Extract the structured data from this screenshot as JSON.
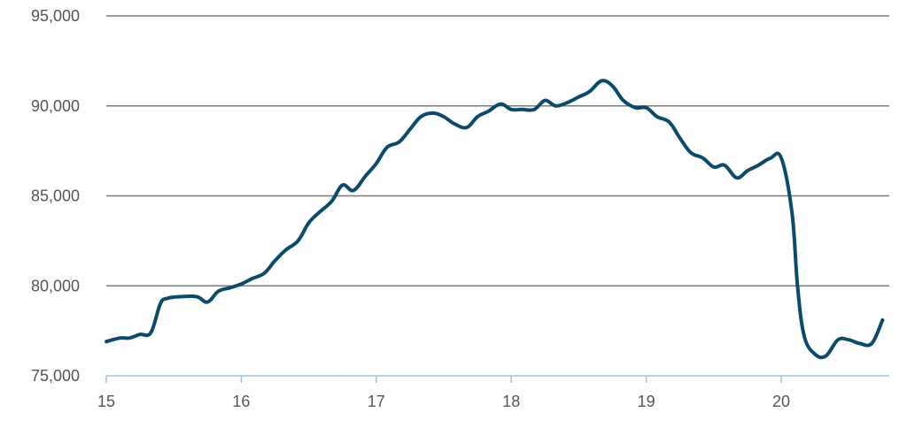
{
  "chart_data": {
    "type": "line",
    "title": "",
    "xlabel": "",
    "ylabel": "",
    "xlim": [
      15,
      20.8
    ],
    "ylim": [
      75000,
      95000
    ],
    "grid": true,
    "legend": "none",
    "x_ticks": [
      15,
      16,
      17,
      18,
      19,
      20
    ],
    "x_tick_labels": [
      "15",
      "16",
      "17",
      "18",
      "19",
      "20"
    ],
    "y_ticks": [
      75000,
      80000,
      85000,
      90000,
      95000
    ],
    "y_tick_labels": [
      "75,000",
      "80,000",
      "85,000",
      "90,000",
      "95,000"
    ],
    "colors": {
      "line": "#0b4a6b",
      "grid": "#7a7a7a",
      "baseline": "#9fc3df",
      "text": "#555555"
    },
    "series": [
      {
        "x": [
          15.0,
          15.1,
          15.17,
          15.25,
          15.33,
          15.4,
          15.45,
          15.55,
          15.67,
          15.75,
          15.83,
          15.92,
          16.0,
          16.08,
          16.17,
          16.25,
          16.33,
          16.42,
          16.5,
          16.58,
          16.67,
          16.75,
          16.83,
          16.92,
          17.0,
          17.08,
          17.17,
          17.25,
          17.33,
          17.42,
          17.5,
          17.58,
          17.67,
          17.75,
          17.83,
          17.92,
          18.0,
          18.08,
          18.17,
          18.25,
          18.33,
          18.42,
          18.5,
          18.58,
          18.67,
          18.75,
          18.83,
          18.92,
          19.0,
          19.08,
          19.17,
          19.25,
          19.33,
          19.42,
          19.5,
          19.58,
          19.67,
          19.75,
          19.83,
          19.92,
          20.0,
          20.08,
          20.12,
          20.17,
          20.25,
          20.33,
          20.42,
          20.5,
          20.58,
          20.67,
          20.75
        ],
        "values": [
          76900,
          77100,
          77100,
          77300,
          77400,
          79000,
          79300,
          79400,
          79400,
          79100,
          79700,
          79900,
          80100,
          80400,
          80700,
          81400,
          82000,
          82500,
          83500,
          84100,
          84700,
          85600,
          85300,
          86100,
          86800,
          87700,
          88000,
          88700,
          89400,
          89600,
          89400,
          89000,
          88800,
          89400,
          89700,
          90100,
          89800,
          89800,
          89800,
          90300,
          90000,
          90200,
          90500,
          90800,
          91400,
          91100,
          90300,
          89900,
          89900,
          89400,
          89100,
          88200,
          87400,
          87100,
          86600,
          86700,
          86000,
          86400,
          86700,
          87100,
          87100,
          84000,
          80000,
          77200,
          76200,
          76100,
          77000,
          77000,
          76800,
          76800,
          78100
        ]
      }
    ]
  }
}
